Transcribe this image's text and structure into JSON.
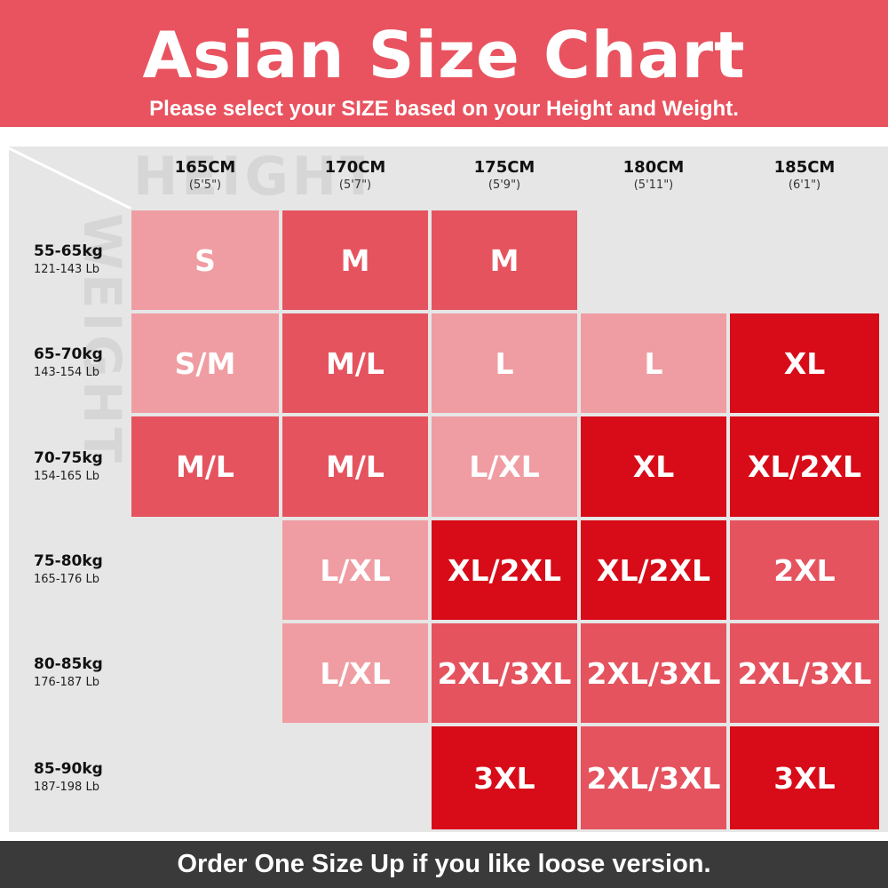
{
  "header": {
    "title": "Asian Size Chart",
    "subtitle": "Please select your SIZE based on your Height and Weight."
  },
  "watermarks": {
    "height": "HEIGHT",
    "weight": "WEIGHT"
  },
  "colors": {
    "header_bg": "#e8535f",
    "table_bg": "#e6e6e6",
    "light_pink": "#ef9da2",
    "medium_red": "#e5535f",
    "deep_red": "#d80b18",
    "empty": "#e6e6e6",
    "footer_bg": "#3a3a3a"
  },
  "columns": [
    {
      "cm": "165CM",
      "ft": "(5'5\")"
    },
    {
      "cm": "170CM",
      "ft": "(5'7\")"
    },
    {
      "cm": "175CM",
      "ft": "(5'9\")"
    },
    {
      "cm": "180CM",
      "ft": "(5'11\")"
    },
    {
      "cm": "185CM",
      "ft": "(6'1\")"
    }
  ],
  "rows": [
    {
      "kg": "55-65kg",
      "lb": "121-143 Lb"
    },
    {
      "kg": "65-70kg",
      "lb": "143-154 Lb"
    },
    {
      "kg": "70-75kg",
      "lb": "154-165 Lb"
    },
    {
      "kg": "75-80kg",
      "lb": "165-176 Lb"
    },
    {
      "kg": "80-85kg",
      "lb": "176-187 Lb"
    },
    {
      "kg": "85-90kg",
      "lb": "187-198 Lb"
    }
  ],
  "cells": [
    [
      {
        "size": "S",
        "tone": "light_pink"
      },
      {
        "size": "M",
        "tone": "medium_red"
      },
      {
        "size": "M",
        "tone": "medium_red"
      },
      {
        "size": "",
        "tone": "empty"
      },
      {
        "size": "",
        "tone": "empty"
      }
    ],
    [
      {
        "size": "S/M",
        "tone": "light_pink"
      },
      {
        "size": "M/L",
        "tone": "medium_red"
      },
      {
        "size": "L",
        "tone": "light_pink"
      },
      {
        "size": "L",
        "tone": "light_pink"
      },
      {
        "size": "XL",
        "tone": "deep_red"
      }
    ],
    [
      {
        "size": "M/L",
        "tone": "medium_red"
      },
      {
        "size": "M/L",
        "tone": "medium_red"
      },
      {
        "size": "L/XL",
        "tone": "light_pink"
      },
      {
        "size": "XL",
        "tone": "deep_red"
      },
      {
        "size": "XL/2XL",
        "tone": "deep_red"
      }
    ],
    [
      {
        "size": "",
        "tone": "empty"
      },
      {
        "size": "L/XL",
        "tone": "light_pink"
      },
      {
        "size": "XL/2XL",
        "tone": "deep_red"
      },
      {
        "size": "XL/2XL",
        "tone": "deep_red"
      },
      {
        "size": "2XL",
        "tone": "medium_red"
      }
    ],
    [
      {
        "size": "",
        "tone": "empty"
      },
      {
        "size": "L/XL",
        "tone": "light_pink"
      },
      {
        "size": "2XL/3XL",
        "tone": "medium_red"
      },
      {
        "size": "2XL/3XL",
        "tone": "medium_red"
      },
      {
        "size": "2XL/3XL",
        "tone": "medium_red"
      }
    ],
    [
      {
        "size": "",
        "tone": "empty"
      },
      {
        "size": "",
        "tone": "empty"
      },
      {
        "size": "3XL",
        "tone": "deep_red"
      },
      {
        "size": "2XL/3XL",
        "tone": "medium_red"
      },
      {
        "size": "3XL",
        "tone": "deep_red"
      }
    ]
  ],
  "footer": {
    "note": "Order One Size Up if you like loose version."
  }
}
